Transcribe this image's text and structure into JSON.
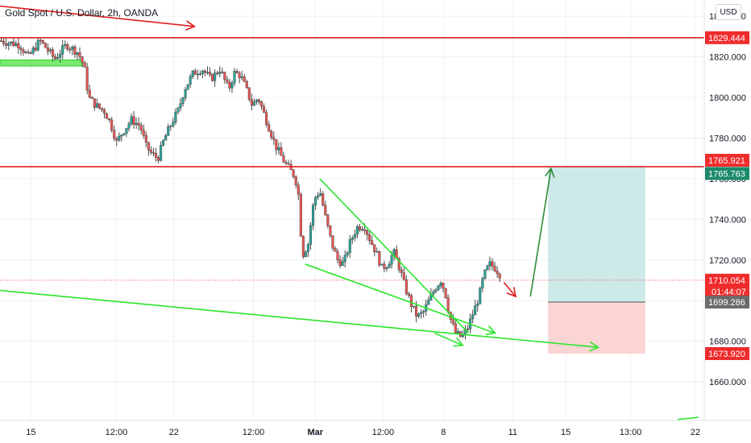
{
  "header": {
    "symbol": "Gold Spot / U.S. Dollar",
    "interval": "2h",
    "broker": "OANDA",
    "separator1": " / ",
    "separator2": ", ",
    "currency_button": "USD"
  },
  "colors": {
    "up": "#26a69a",
    "down": "#ef5350",
    "candle_body": "#4a4a4a",
    "resistance": "#e01f1f",
    "trendline": "#29e629",
    "arrow_up": "#2e8b3a",
    "target_zone": "#cdeae8",
    "stop_zone": "#fbd4d4",
    "badge_red": "#ef2c2c",
    "badge_green": "#1b8a6b",
    "badge_gray": "#6b6b6b"
  },
  "chart_data": {
    "type": "candlestick",
    "instrument": "Gold Spot / U.S. Dollar",
    "interval": "2h",
    "y_axis": {
      "position": "right",
      "ylim": [
        1641,
        1848
      ],
      "ticks": [
        1660,
        1680,
        1700,
        1720,
        1740,
        1760,
        1780,
        1800,
        1820,
        1840
      ],
      "tick_labels": [
        "1660.000",
        "1680.000",
        "1700.000",
        "1720.000",
        "1740.000",
        "1760.000",
        "1780.000",
        "1800.000",
        "1820.000",
        "1840.000"
      ]
    },
    "x_axis": {
      "ticks": [
        {
          "label": "15",
          "day": 0.35
        },
        {
          "label": "12:00",
          "day": 3.25
        },
        {
          "label": "22",
          "day": 5.2
        },
        {
          "label": "12:00",
          "day": 7.9
        },
        {
          "label": "Mar",
          "day": 10.0
        },
        {
          "label": "12:00",
          "day": 12.3
        },
        {
          "label": "8",
          "day": 14.35
        },
        {
          "label": "11",
          "day": 16.7
        },
        {
          "label": "15",
          "day": 18.5
        },
        {
          "label": "13:00",
          "day": 20.7
        },
        {
          "label": "22",
          "day": 22.9
        }
      ],
      "xlim": [
        -0.7,
        23.2
      ]
    },
    "price_path": [
      [
        -0.7,
        1828
      ],
      [
        0.0,
        1826
      ],
      [
        0.3,
        1820
      ],
      [
        0.7,
        1828
      ],
      [
        1.2,
        1819
      ],
      [
        1.6,
        1826
      ],
      [
        2.0,
        1822
      ],
      [
        2.2,
        1815
      ],
      [
        2.35,
        1800
      ],
      [
        2.6,
        1796
      ],
      [
        2.9,
        1793
      ],
      [
        3.1,
        1787
      ],
      [
        3.3,
        1778
      ],
      [
        3.5,
        1783
      ],
      [
        3.8,
        1789
      ],
      [
        4.1,
        1786
      ],
      [
        4.3,
        1776
      ],
      [
        4.5,
        1772
      ],
      [
        4.7,
        1770
      ],
      [
        4.9,
        1779
      ],
      [
        5.15,
        1787
      ],
      [
        5.4,
        1794
      ],
      [
        5.6,
        1804
      ],
      [
        5.9,
        1812
      ],
      [
        6.2,
        1814
      ],
      [
        6.5,
        1809
      ],
      [
        6.8,
        1814
      ],
      [
        7.1,
        1804
      ],
      [
        7.3,
        1812
      ],
      [
        7.5,
        1811
      ],
      [
        7.7,
        1804
      ],
      [
        7.9,
        1796
      ],
      [
        8.1,
        1800
      ],
      [
        8.4,
        1788
      ],
      [
        8.7,
        1776
      ],
      [
        9.0,
        1768
      ],
      [
        9.3,
        1762
      ],
      [
        9.45,
        1756
      ],
      [
        9.6,
        1722
      ],
      [
        9.8,
        1728
      ],
      [
        10.0,
        1750
      ],
      [
        10.2,
        1754
      ],
      [
        10.4,
        1740
      ],
      [
        10.6,
        1728
      ],
      [
        10.8,
        1720
      ],
      [
        11.0,
        1718
      ],
      [
        11.2,
        1728
      ],
      [
        11.45,
        1736
      ],
      [
        11.7,
        1737
      ],
      [
        11.9,
        1730
      ],
      [
        12.1,
        1724
      ],
      [
        12.3,
        1716
      ],
      [
        12.5,
        1718
      ],
      [
        12.7,
        1724
      ],
      [
        12.9,
        1716
      ],
      [
        13.1,
        1706
      ],
      [
        13.3,
        1698
      ],
      [
        13.5,
        1692
      ],
      [
        13.7,
        1694
      ],
      [
        13.9,
        1700
      ],
      [
        14.1,
        1706
      ],
      [
        14.3,
        1710
      ],
      [
        14.45,
        1704
      ],
      [
        14.6,
        1692
      ],
      [
        14.8,
        1684
      ],
      [
        15.0,
        1682
      ],
      [
        15.2,
        1686
      ],
      [
        15.4,
        1694
      ],
      [
        15.6,
        1702
      ],
      [
        15.75,
        1712
      ],
      [
        15.95,
        1718
      ],
      [
        16.15,
        1716
      ],
      [
        16.3,
        1713
      ]
    ],
    "horizontal_levels": [
      {
        "price": 1829.444,
        "label": "1829.444",
        "style": "resistance"
      },
      {
        "price": 1765.921,
        "label": "1765.921",
        "style": "resistance"
      }
    ],
    "price_badges": [
      {
        "price": 1829.444,
        "text": "1829.444",
        "color": "red"
      },
      {
        "price": 1765.921,
        "text": "1765.921",
        "color": "red"
      },
      {
        "price": 1765.763,
        "text": "1765.763",
        "color": "green"
      },
      {
        "price": 1710.054,
        "text": "1710.054",
        "color": "red",
        "subtext": "01:44:07"
      },
      {
        "price": 1699.286,
        "text": "1699.286",
        "color": "gray"
      },
      {
        "price": 1673.92,
        "text": "1673.920",
        "color": "red"
      }
    ],
    "current_price": 1710.054,
    "countdown": "01:44:07",
    "position": {
      "entry": 1699.286,
      "target": 1765.763,
      "stop": 1673.92,
      "start_day": 17.9,
      "end_day": 21.2
    },
    "support_zone": {
      "price_top": 1818.5,
      "price_bottom": 1815.5,
      "day_start": -0.7,
      "day_end": 2.1
    },
    "drawings": [
      {
        "type": "arrow",
        "color": "red",
        "points": [
          [
            -0.7,
            1845
          ],
          [
            5.9,
            1835
          ]
        ]
      },
      {
        "type": "line",
        "color": "green",
        "points": [
          [
            10.15,
            1760
          ],
          [
            15.2,
            1684
          ]
        ]
      },
      {
        "type": "arrow",
        "color": "green",
        "points": [
          [
            9.65,
            1718
          ],
          [
            16.1,
            1684
          ]
        ]
      },
      {
        "type": "arrow",
        "color": "green",
        "points": [
          [
            14.05,
            1684
          ],
          [
            15.0,
            1678
          ]
        ]
      },
      {
        "type": "arrow",
        "color": "green",
        "points": [
          [
            -0.7,
            1705
          ],
          [
            19.6,
            1677
          ]
        ]
      },
      {
        "type": "arrow",
        "color": "green",
        "points": [
          [
            17.3,
            1702
          ],
          [
            18.0,
            1765
          ]
        ]
      },
      {
        "type": "arrow",
        "color": "red",
        "points": [
          [
            16.4,
            1709
          ],
          [
            16.8,
            1702
          ]
        ]
      },
      {
        "type": "line",
        "color": "green",
        "points": [
          [
            22.3,
            1641.5
          ],
          [
            23.0,
            1642.5
          ]
        ]
      }
    ]
  }
}
